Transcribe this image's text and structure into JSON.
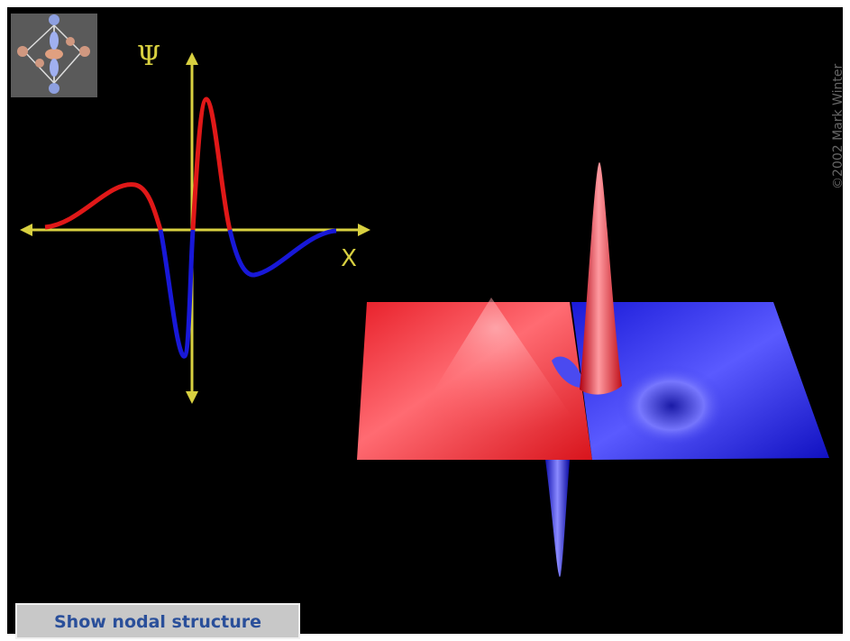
{
  "axis_labels": {
    "y": "Ψ",
    "x": "X"
  },
  "copyright": "©2002 Mark Winter",
  "button": {
    "label": "Show nodal structure"
  }
}
